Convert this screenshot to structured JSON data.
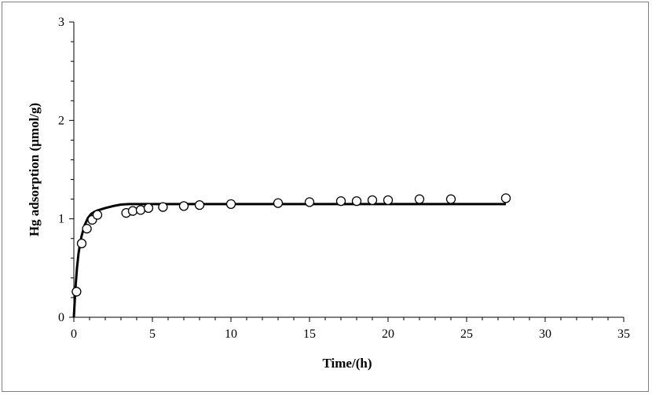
{
  "chart_data": {
    "type": "scatter",
    "xlabel": "Time/(h)",
    "ylabel": "Hg adsorption (µmol/g)",
    "xlim": [
      0,
      35
    ],
    "ylim": [
      0,
      3
    ],
    "x_ticks": [
      0,
      5,
      10,
      15,
      20,
      25,
      30,
      35
    ],
    "y_ticks": [
      0,
      1,
      2,
      3
    ],
    "x_tick_labels": [
      "0",
      "5",
      "10",
      "15",
      "20",
      "25",
      "30",
      "35"
    ],
    "y_tick_labels": [
      "0",
      "1",
      "2",
      "3"
    ],
    "grid": false,
    "legend": "none",
    "series": [
      {
        "kind": "markers",
        "marker": "open-circle",
        "color": "#000000",
        "x": [
          0.17,
          0.5,
          0.83,
          1.17,
          1.5,
          3.33,
          3.75,
          4.25,
          4.75,
          5.67,
          7,
          8,
          10,
          13,
          15,
          17,
          18,
          19,
          20,
          22,
          24,
          27.5
        ],
        "y": [
          0.26,
          0.75,
          0.9,
          0.99,
          1.04,
          1.06,
          1.08,
          1.09,
          1.11,
          1.12,
          1.13,
          1.14,
          1.15,
          1.16,
          1.17,
          1.18,
          1.18,
          1.19,
          1.19,
          1.2,
          1.2,
          1.21
        ]
      },
      {
        "kind": "line",
        "color": "#000000",
        "x": [
          0,
          0.1,
          0.2,
          0.3,
          0.4,
          0.5,
          0.7,
          0.9,
          1.1,
          1.3,
          1.5,
          2.0,
          2.5,
          3.0,
          3.5,
          4.0,
          5.0,
          7.0,
          10.0,
          15.0,
          20.0,
          25.0,
          27.5
        ],
        "y": [
          0,
          0.29,
          0.5,
          0.65,
          0.75,
          0.83,
          0.94,
          1.01,
          1.05,
          1.07,
          1.085,
          1.11,
          1.13,
          1.145,
          1.15,
          1.15,
          1.15,
          1.15,
          1.15,
          1.15,
          1.15,
          1.15,
          1.15
        ]
      }
    ]
  }
}
